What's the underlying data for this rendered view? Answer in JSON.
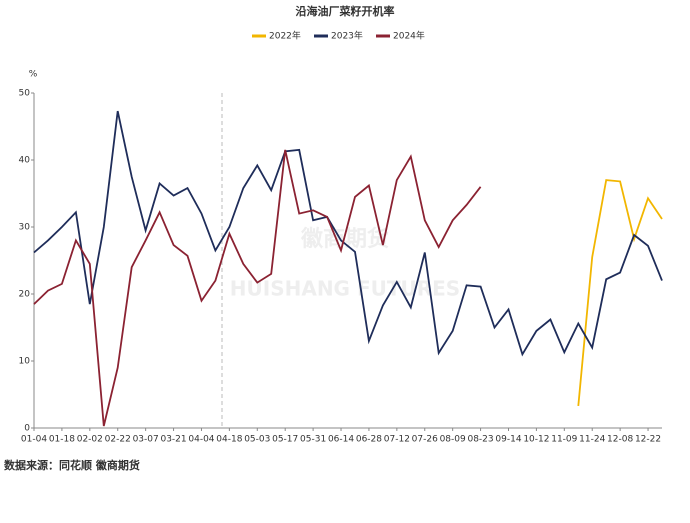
{
  "chart_data": {
    "type": "line",
    "title": "沿海油厂菜籽开机率",
    "y_unit": "%",
    "categories": [
      "01-04",
      null,
      "01-18",
      null,
      "02-02",
      null,
      "02-22",
      null,
      "03-07",
      null,
      "03-21",
      null,
      "04-04",
      null,
      "04-18",
      null,
      "05-03",
      null,
      "05-17",
      null,
      "05-31",
      null,
      "06-14",
      null,
      "06-28",
      null,
      "07-12",
      null,
      "07-26",
      null,
      "08-09",
      null,
      "08-23",
      null,
      "09-14",
      null,
      "10-12",
      null,
      "11-09",
      null,
      "11-24",
      null,
      "12-08",
      null,
      "12-22",
      null
    ],
    "series": [
      {
        "name": "2022年",
        "color": "#f2b600",
        "values": [
          null,
          null,
          null,
          null,
          null,
          null,
          null,
          null,
          null,
          null,
          null,
          null,
          null,
          null,
          null,
          null,
          null,
          null,
          null,
          null,
          null,
          null,
          null,
          null,
          null,
          null,
          null,
          null,
          null,
          null,
          null,
          null,
          null,
          null,
          null,
          null,
          null,
          null,
          null,
          3.3,
          25.5,
          37,
          36.8,
          28.2,
          34.3,
          31.2
        ]
      },
      {
        "name": "2023年",
        "color": "#1f2d5a",
        "values": [
          26.2,
          28,
          30,
          32.2,
          18.5,
          30,
          47.3,
          37.5,
          29.5,
          36.5,
          34.7,
          35.8,
          32,
          26.5,
          30,
          35.8,
          39.2,
          35.5,
          41.3,
          41.5,
          31,
          31.5,
          28,
          26.3,
          13,
          18.3,
          21.8,
          18,
          26.2,
          11.2,
          14.5,
          21.3,
          21.1,
          15,
          17.7,
          11,
          14.5,
          16.2,
          11.3,
          15.6,
          12,
          22.2,
          23.2,
          28.8,
          27.2,
          22
        ]
      },
      {
        "name": "2024年",
        "color": "#8b2232",
        "values": [
          18.5,
          20.5,
          21.5,
          28,
          24.5,
          0.3,
          9,
          24,
          28,
          32.2,
          27.3,
          25.7,
          19,
          22,
          29,
          24.5,
          21.7,
          23,
          41.5,
          32,
          32.5,
          31.5,
          26.5,
          34.5,
          36.2,
          27.3,
          37,
          40.5,
          31,
          27,
          31,
          33.3,
          36,
          null,
          null,
          null,
          null,
          null,
          null,
          null,
          null,
          null,
          null,
          null,
          null,
          null
        ]
      }
    ],
    "ylim": [
      0,
      50
    ],
    "yticks": [
      0,
      10,
      20,
      30,
      40,
      50
    ],
    "grid": false,
    "legend": "top",
    "watermark": [
      "徽商期货",
      "HUISHANG FUTURES"
    ],
    "source": "数据来源：同花顺 徽商期货"
  }
}
